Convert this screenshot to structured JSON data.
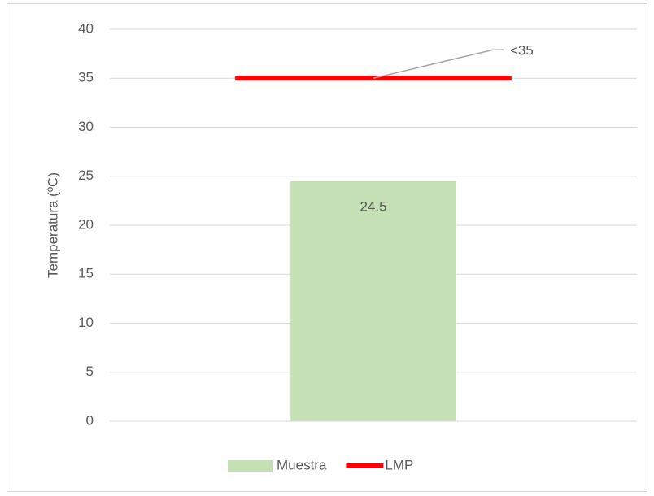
{
  "chart_data": {
    "type": "bar",
    "y_label": "Temperatura (ºC)",
    "categories": [
      null
    ],
    "series": [
      {
        "name": "Muestra",
        "color": "#c5e0b4",
        "values": [
          24.5
        ]
      },
      {
        "name": "LMP",
        "color": "#ff0000",
        "type": "line",
        "values": [
          35
        ],
        "value_labels": [
          "<35"
        ]
      }
    ],
    "ylim": [
      0,
      40
    ],
    "yticks": [
      0,
      5,
      10,
      15,
      20,
      25,
      30,
      35,
      40
    ],
    "grid": true,
    "legend": "bottom"
  }
}
